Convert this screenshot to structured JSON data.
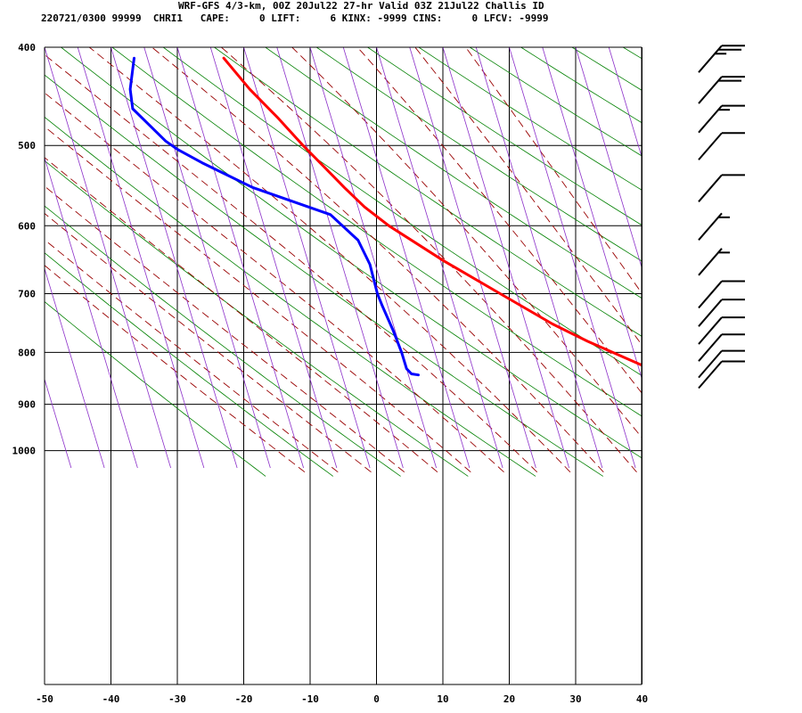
{
  "header": {
    "line1": "WRF-GFS 4/3-km, 00Z 20Jul22 27-hr Valid 03Z 21Jul22 Challis ID",
    "line2": "220721/0300 99999  CHRI1   CAPE:     0 LIFT:     6 KINX: -9999 CINS:     0 LFCV: -9999"
  },
  "chart_data": {
    "type": "line",
    "title": "WRF-GFS 4/3-km, 00Z 20Jul22 27-hr Valid 03Z 21Jul22 Challis ID",
    "xlabel": "",
    "ylabel": "",
    "x_scale": "skew-T temperature (C)",
    "y_scale": "log pressure (mb)",
    "xlim": [
      -50,
      40
    ],
    "ylim": [
      1040,
      400
    ],
    "x_ticks": [
      -50,
      -40,
      -30,
      -20,
      -10,
      0,
      10,
      20,
      30,
      40
    ],
    "y_ticks": [
      400,
      500,
      600,
      700,
      800,
      900,
      1000
    ],
    "grid": true,
    "colors": {
      "temperature": "#ff0000",
      "dewpoint": "#0000ff",
      "isotherms": "#8b2fc9",
      "dry_adiabats": "#008000",
      "moist_adiabats": "#990000",
      "grid": "#000000"
    },
    "series": [
      {
        "key": "temperature",
        "points": [
          [
            842,
            25.5
          ],
          [
            840,
            29.0
          ],
          [
            836,
            28.6
          ],
          [
            826,
            26.0
          ],
          [
            800,
            21.8
          ],
          [
            780,
            18.5
          ],
          [
            750,
            14.0
          ],
          [
            700,
            7.5
          ],
          [
            650,
            0.5
          ],
          [
            600,
            -6.2
          ],
          [
            575,
            -9.0
          ],
          [
            550,
            -11.2
          ],
          [
            500,
            -15.5
          ],
          [
            470,
            -18.0
          ],
          [
            440,
            -21.0
          ],
          [
            410,
            -23.5
          ]
        ]
      },
      {
        "key": "dewpoint",
        "points": [
          [
            842,
            -8.5
          ],
          [
            840,
            -9.5
          ],
          [
            830,
            -10.0
          ],
          [
            800,
            -10.0
          ],
          [
            760,
            -10.3
          ],
          [
            720,
            -10.8
          ],
          [
            700,
            -11.0
          ],
          [
            655,
            -10.8
          ],
          [
            620,
            -11.5
          ],
          [
            585,
            -14.5
          ],
          [
            550,
            -25.0
          ],
          [
            520,
            -31.5
          ],
          [
            505,
            -34.5
          ],
          [
            495,
            -36.0
          ],
          [
            460,
            -39.5
          ],
          [
            440,
            -39.0
          ],
          [
            410,
            -37.0
          ]
        ]
      }
    ],
    "wind_barbs": [
      {
        "p": 410,
        "knots": 25
      },
      {
        "p": 440,
        "knots": 20
      },
      {
        "p": 470,
        "knots": 15
      },
      {
        "p": 500,
        "knots": 10
      },
      {
        "p": 550,
        "knots": 10
      },
      {
        "p": 600,
        "knots": 5
      },
      {
        "p": 650,
        "knots": 5
      },
      {
        "p": 700,
        "knots": 10
      },
      {
        "p": 730,
        "knots": 10
      },
      {
        "p": 760,
        "knots": 10
      },
      {
        "p": 790,
        "knots": 10
      },
      {
        "p": 820,
        "knots": 10
      },
      {
        "p": 840,
        "knots": 10
      }
    ]
  }
}
